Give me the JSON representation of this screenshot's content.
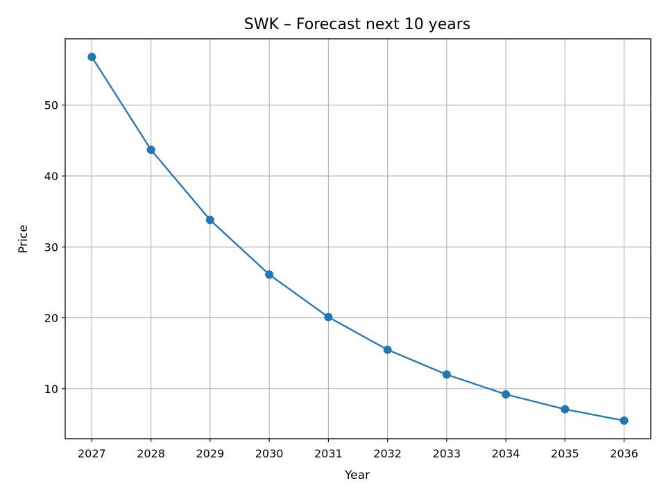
{
  "chart_data": {
    "type": "line",
    "title": "SWK – Forecast next 10 years",
    "xlabel": "Year",
    "ylabel": "Price",
    "x": [
      2027,
      2028,
      2029,
      2030,
      2031,
      2032,
      2033,
      2034,
      2035,
      2036
    ],
    "series": [
      {
        "values": [
          56.8,
          43.7,
          33.8,
          26.1,
          20.1,
          15.5,
          12.0,
          9.2,
          7.1,
          5.5
        ],
        "color": "#1f77b4"
      }
    ],
    "xlim": [
      2026.55,
      2036.45
    ],
    "ylim": [
      2.95,
      59.35
    ],
    "yticks": [
      10,
      20,
      30,
      40,
      50
    ],
    "grid": true,
    "legend": "none"
  }
}
